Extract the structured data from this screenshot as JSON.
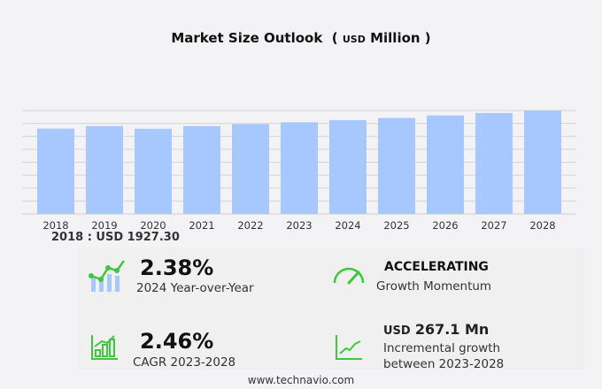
{
  "title": {
    "main": "Market Size Outlook",
    "unit_prefix": "USD",
    "unit": "Million"
  },
  "chart_data": {
    "type": "bar",
    "title": "Market Size Outlook (USD Million)",
    "categories": [
      "2018",
      "2019",
      "2020",
      "2021",
      "2022",
      "2023",
      "2024",
      "2025",
      "2026",
      "2027",
      "2028"
    ],
    "values": [
      1927.3,
      1985,
      1925,
      1985,
      2030,
      2070,
      2119,
      2170,
      2225,
      2280,
      2337
    ],
    "ylim": [
      0,
      2337
    ],
    "grid": true,
    "bar_color": "#a6c8ff"
  },
  "base_label": "2018 : USD  1927.30",
  "stats": {
    "yoy": {
      "value": "2.38%",
      "label": "2024 Year-over-Year"
    },
    "momentum": {
      "value": "ACCELERATING",
      "label": "Growth Momentum"
    },
    "cagr": {
      "value": "2.46%",
      "label": "CAGR 2023-2028"
    },
    "incremental": {
      "prefix": "USD",
      "value": "267.1 Mn",
      "label1": "Incremental growth",
      "label2": "between 2023-2028"
    }
  },
  "icon_color": "#3cc83c",
  "footer": "www.technavio.com"
}
